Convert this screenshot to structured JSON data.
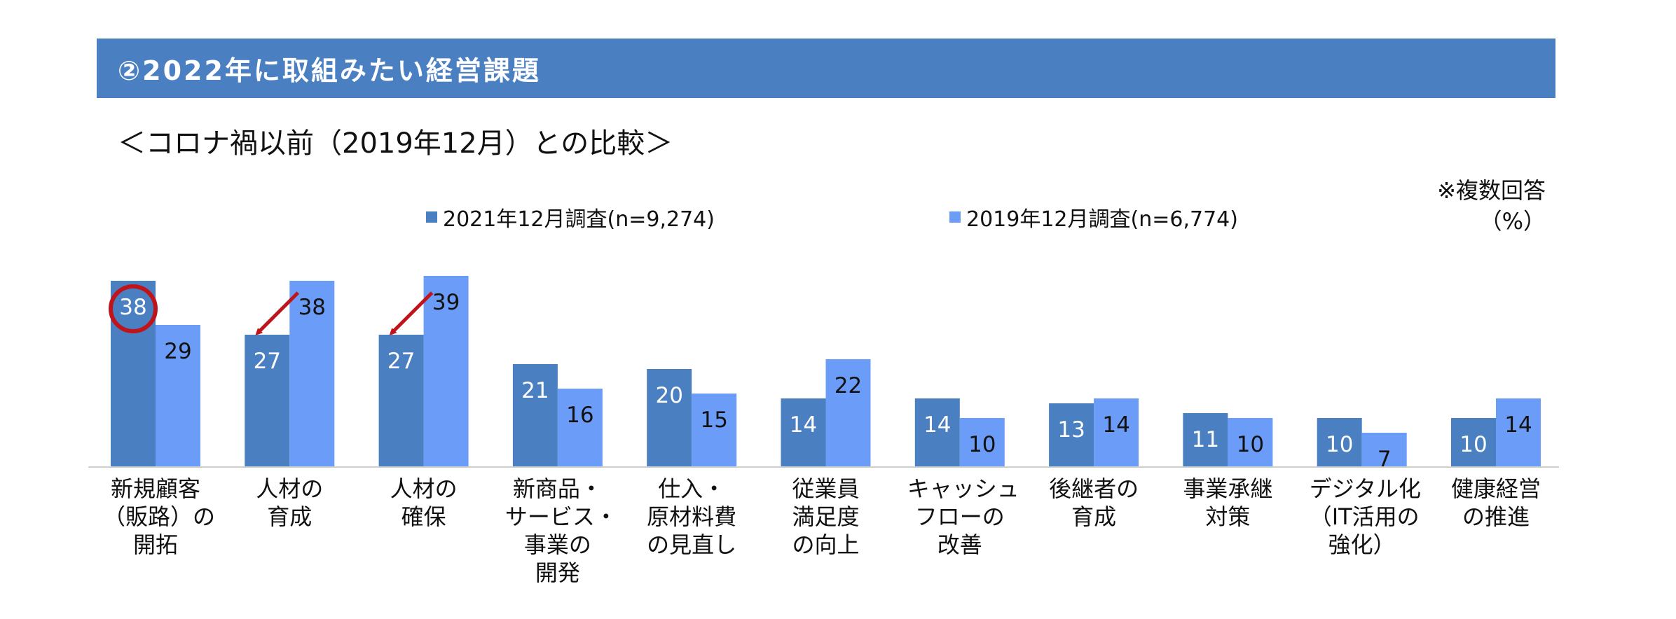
{
  "header": {
    "title": "②2022年に取組みたい経営課題",
    "subtitle": "＜コロナ禍以前（2019年12月）との比較＞",
    "note_line1": "※複数回答",
    "note_line2": "（%）"
  },
  "colors": {
    "banner": "#4a7fc1",
    "series_2021": "#4a7fc1",
    "series_2019": "#6b9cf7",
    "highlight": "#c0141b"
  },
  "chart_data": {
    "type": "bar",
    "categories": [
      "新規顧客（販路）の開拓",
      "人材の育成",
      "人材の確保",
      "新商品・サービス・事業の開発",
      "仕入・原材料費の見直し",
      "従業員満足度の向上",
      "キャッシュフローの改善",
      "後継者の育成",
      "事業承継対策",
      "デジタル化（IT活用の強化）",
      "健康経営の推進"
    ],
    "category_lines": [
      [
        "新規顧客",
        "（販路）の",
        "開拓"
      ],
      [
        "人材の",
        "育成"
      ],
      [
        "人材の",
        "確保"
      ],
      [
        "新商品・",
        "サービス・",
        "事業の",
        "開発"
      ],
      [
        "仕入・",
        "原材料費",
        "の見直し"
      ],
      [
        "従業員",
        "満足度",
        "の向上"
      ],
      [
        "キャッシュ",
        "フローの",
        "改善"
      ],
      [
        "後継者の",
        "育成"
      ],
      [
        "事業承継",
        "対策"
      ],
      [
        "デジタル化",
        "（IT活用の",
        "強化）"
      ],
      [
        "健康経営",
        "の推進"
      ]
    ],
    "series": [
      {
        "name": "2021年12月調査(n=9,274)",
        "values": [
          38,
          27,
          27,
          21,
          20,
          14,
          14,
          13,
          11,
          10,
          10
        ]
      },
      {
        "name": "2019年12月調査(n=6,774)",
        "values": [
          29,
          38,
          39,
          16,
          15,
          22,
          10,
          14,
          10,
          7,
          14
        ]
      }
    ],
    "ylim": [
      0,
      40
    ],
    "legend": "top",
    "grid": false,
    "annotations": {
      "circled": [
        0
      ],
      "arrows": [
        1,
        2
      ]
    }
  }
}
